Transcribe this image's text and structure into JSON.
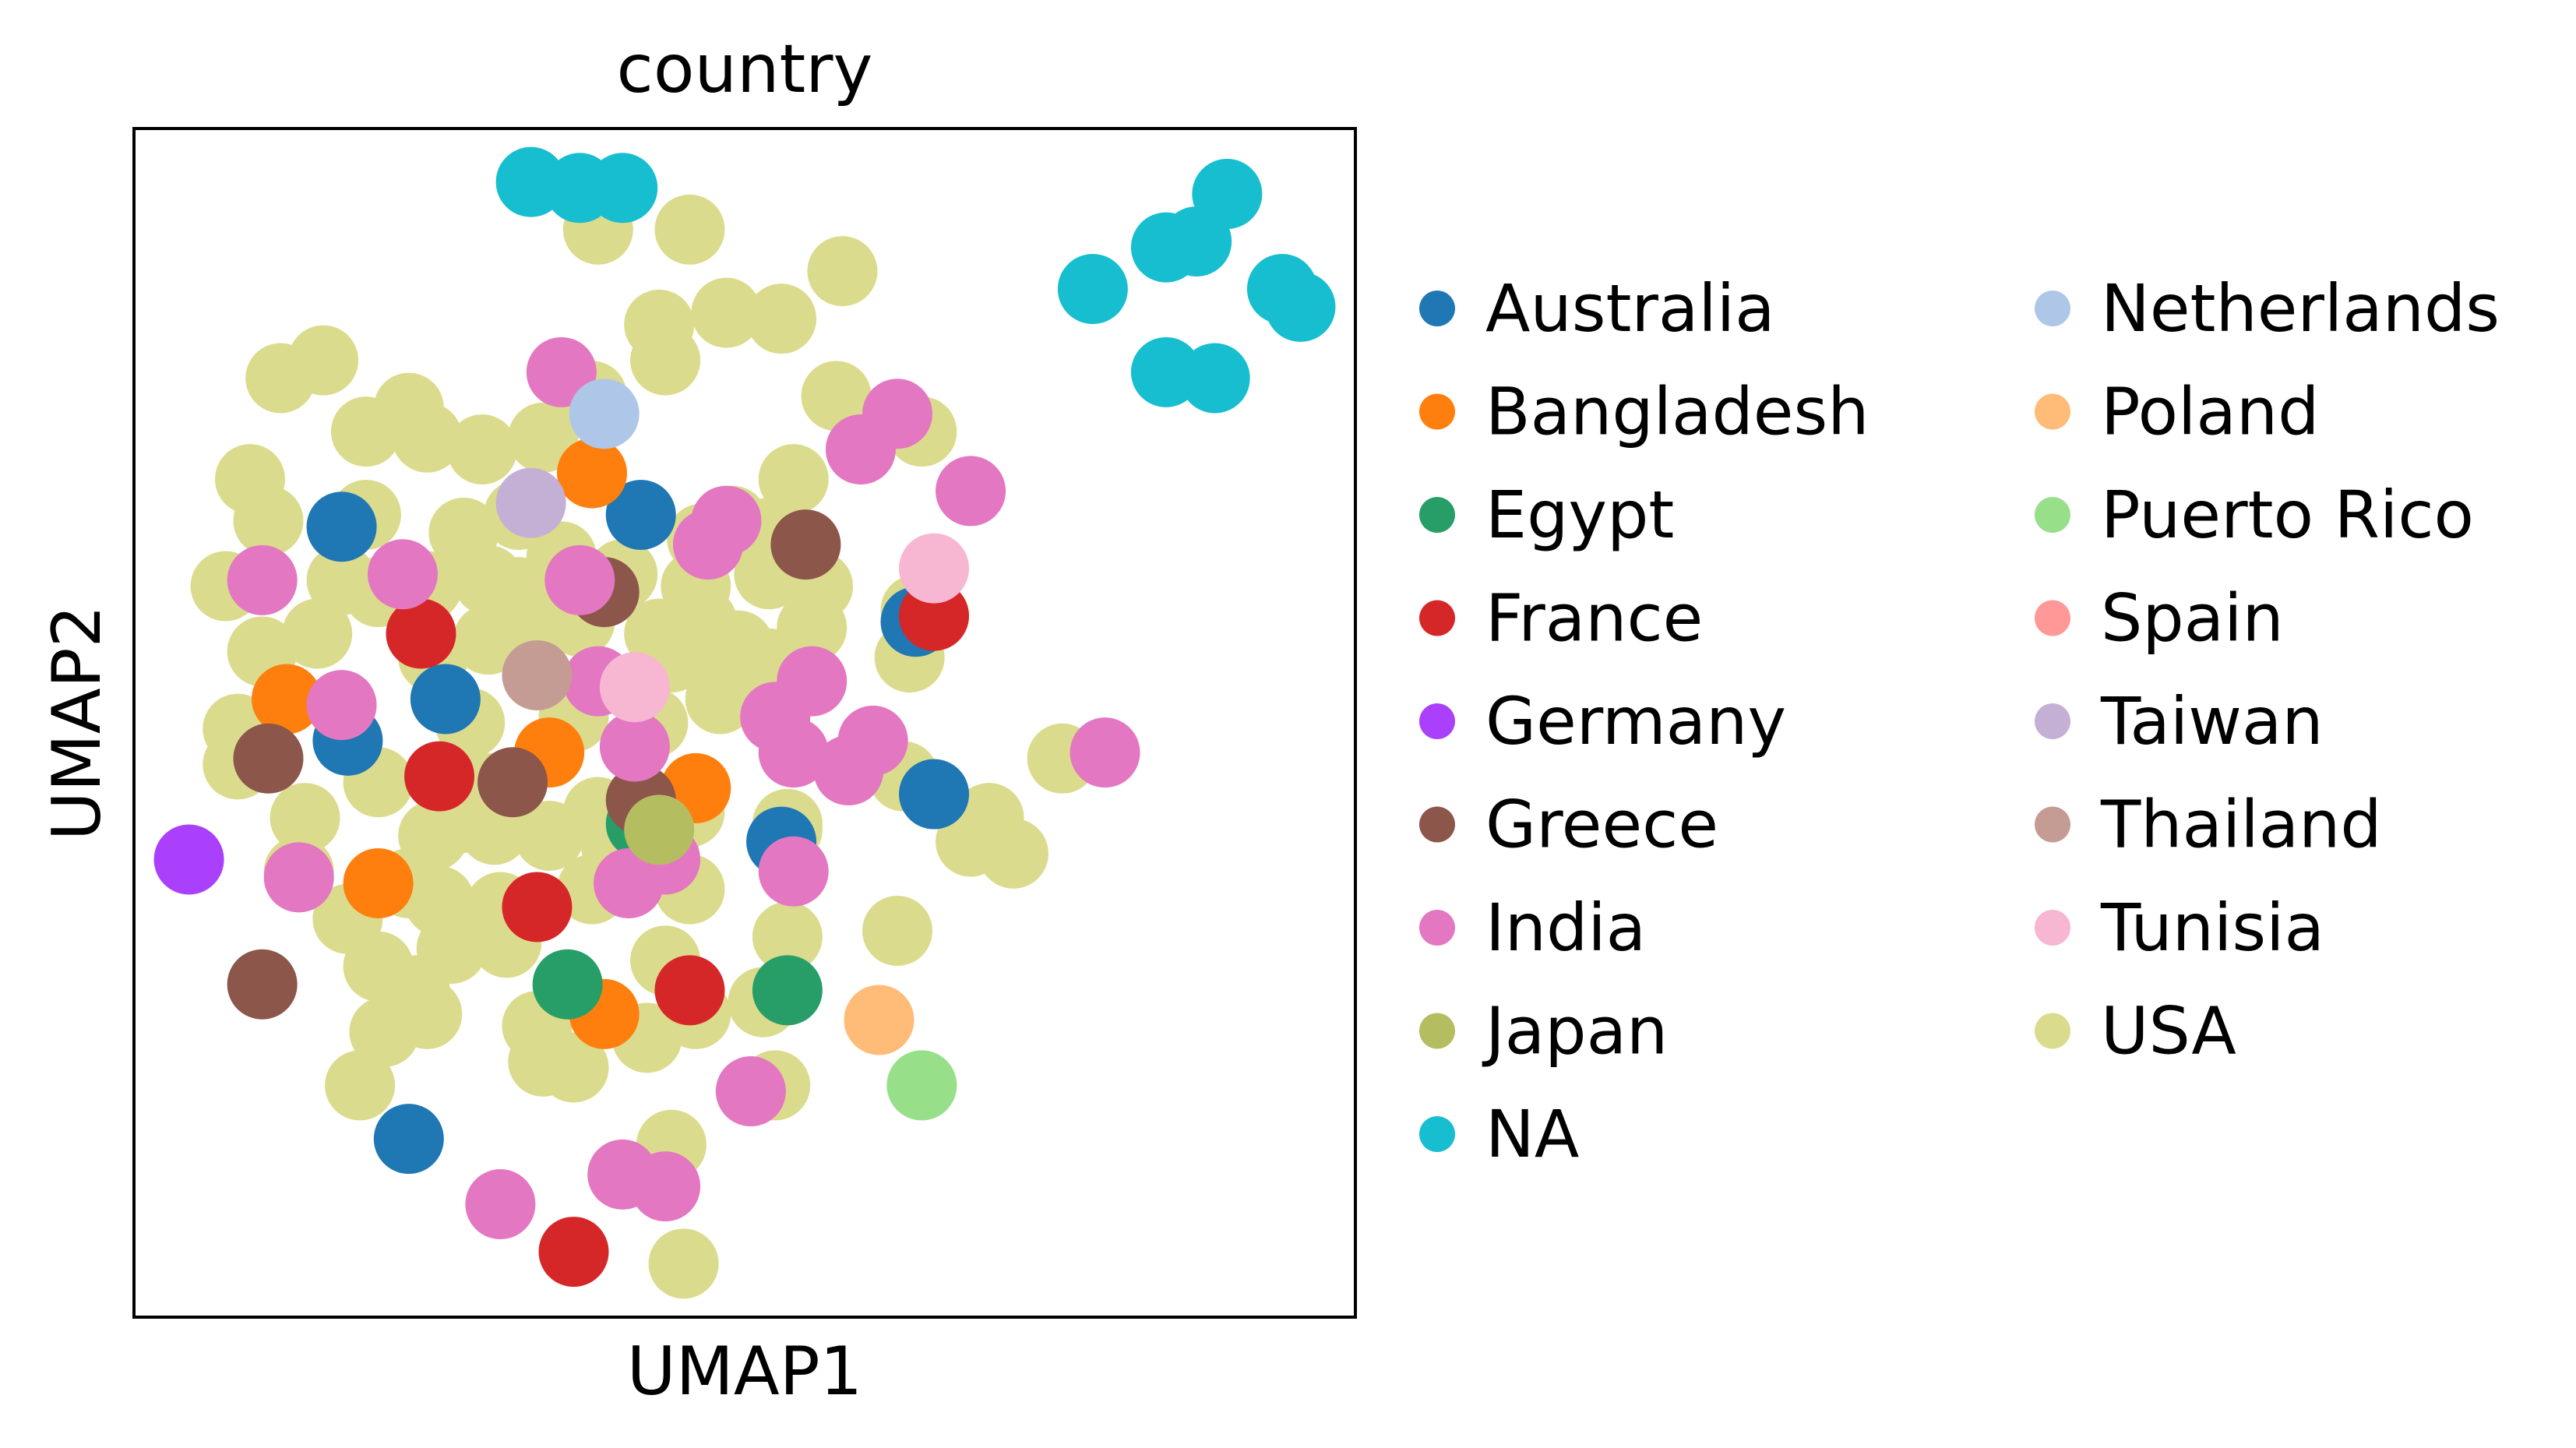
{
  "chart_data": {
    "type": "scatter",
    "title": "country",
    "xlabel": "UMAP1",
    "ylabel": "UMAP2",
    "xlim": [
      0,
      100
    ],
    "ylim": [
      0,
      100
    ],
    "grid": false,
    "ticks": false,
    "legend_placement": "right",
    "series": [
      {
        "name": "Australia",
        "color": "#1f77b4",
        "points": [
          [
            17.0,
            66.5
          ],
          [
            41.5,
            67.5
          ],
          [
            25.5,
            52.0
          ],
          [
            17.5,
            48.5
          ],
          [
            65.5,
            44.0
          ],
          [
            53,
            40.0
          ],
          [
            22.5,
            15.0
          ],
          [
            64.0,
            58.5
          ]
        ]
      },
      {
        "name": "Bangladesh",
        "color": "#ff7f0e",
        "points": [
          [
            37.5,
            71.0
          ],
          [
            12.5,
            52.0
          ],
          [
            34.0,
            47.5
          ],
          [
            46.0,
            44.5
          ],
          [
            20.0,
            36.5
          ],
          [
            38.5,
            25.5
          ]
        ]
      },
      {
        "name": "Egypt",
        "color": "#279e68",
        "points": [
          [
            35.5,
            28.0
          ],
          [
            53.5,
            27.5
          ],
          [
            41.5,
            41.5
          ]
        ]
      },
      {
        "name": "France",
        "color": "#d62728",
        "points": [
          [
            23.5,
            57.5
          ],
          [
            65.5,
            59.0
          ],
          [
            25.0,
            45.5
          ],
          [
            33.0,
            34.5
          ],
          [
            45.5,
            27.5
          ],
          [
            36.0,
            5.5
          ]
        ]
      },
      {
        "name": "Germany",
        "color": "#aa40fc",
        "points": [
          [
            4.5,
            38.5
          ]
        ]
      },
      {
        "name": "Greece",
        "color": "#8c564b",
        "points": [
          [
            55.0,
            65.0
          ],
          [
            38.5,
            61.0
          ],
          [
            11.0,
            47.0
          ],
          [
            31.0,
            45.0
          ],
          [
            41.5,
            43.5
          ],
          [
            10.5,
            28.0
          ]
        ]
      },
      {
        "name": "India",
        "color": "#e377c2",
        "points": [
          [
            35.0,
            79.5
          ],
          [
            62.5,
            76.0
          ],
          [
            59.5,
            73.0
          ],
          [
            68.5,
            69.5
          ],
          [
            48.5,
            67.0
          ],
          [
            47.0,
            65.0
          ],
          [
            10.5,
            62.0
          ],
          [
            22.0,
            62.5
          ],
          [
            36.5,
            62.0
          ],
          [
            17.0,
            51.5
          ],
          [
            38.0,
            53.5
          ],
          [
            55.5,
            53.5
          ],
          [
            52.5,
            50.5
          ],
          [
            60.5,
            48.5
          ],
          [
            58.5,
            46.0
          ],
          [
            54.0,
            47.5
          ],
          [
            79.5,
            47.5
          ],
          [
            41.0,
            48.0
          ],
          [
            43.5,
            38.5
          ],
          [
            40.5,
            36.5
          ],
          [
            13.5,
            37.0
          ],
          [
            54.0,
            37.5
          ],
          [
            50.5,
            19.0
          ],
          [
            40.0,
            12.0
          ],
          [
            30.0,
            9.5
          ],
          [
            43.5,
            11.0
          ]
        ]
      },
      {
        "name": "Japan",
        "color": "#b5bd61",
        "points": [
          [
            43.0,
            41.0
          ]
        ]
      },
      {
        "name": "NA",
        "color": "#17becf",
        "points": [
          [
            32.5,
            95.5
          ],
          [
            36.5,
            95.0
          ],
          [
            40.0,
            95.0
          ],
          [
            89.5,
            94.5
          ],
          [
            87.0,
            90.5
          ],
          [
            84.5,
            90.0
          ],
          [
            78.5,
            86.5
          ],
          [
            94.0,
            86.5
          ],
          [
            95.5,
            85.0
          ],
          [
            84.5,
            79.5
          ],
          [
            88.5,
            79.0
          ]
        ]
      },
      {
        "name": "Netherlands",
        "color": "#aec7e8",
        "points": [
          [
            38.5,
            76.0
          ]
        ]
      },
      {
        "name": "Poland",
        "color": "#ffbb78",
        "points": [
          [
            61.0,
            25.0
          ]
        ]
      },
      {
        "name": "Puerto Rico",
        "color": "#98df8a",
        "points": [
          [
            64.5,
            19.5
          ]
        ]
      },
      {
        "name": "Spain",
        "color": "#ff9896",
        "points": []
      },
      {
        "name": "Taiwan",
        "color": "#c5b0d5",
        "points": [
          [
            32.5,
            68.5
          ]
        ]
      },
      {
        "name": "Thailand",
        "color": "#c49c94",
        "points": [
          [
            33.0,
            54.0
          ]
        ]
      },
      {
        "name": "Tunisia",
        "color": "#f7b6d2",
        "points": [
          [
            65.5,
            63.0
          ],
          [
            41.0,
            53.0
          ]
        ]
      },
      {
        "name": "USA",
        "color": "#dbdb8d",
        "points": [
          [
            38.0,
            91.5
          ],
          [
            45.5,
            91.5
          ],
          [
            58.0,
            88.0
          ],
          [
            43.0,
            83.5
          ],
          [
            48.5,
            84.5
          ],
          [
            53.0,
            84.0
          ],
          [
            12.0,
            79.0
          ],
          [
            15.5,
            80.5
          ],
          [
            43.5,
            80.5
          ],
          [
            22.5,
            76.5
          ],
          [
            19.0,
            74.5
          ],
          [
            24.0,
            74.0
          ],
          [
            28.5,
            73.0
          ],
          [
            33.5,
            74.0
          ],
          [
            37.5,
            77.5
          ],
          [
            57.5,
            77.5
          ],
          [
            64.5,
            74.5
          ],
          [
            9.5,
            70.5
          ],
          [
            11.0,
            67.0
          ],
          [
            19.0,
            67.5
          ],
          [
            27.0,
            66.0
          ],
          [
            31.5,
            67.5
          ],
          [
            46.5,
            65.5
          ],
          [
            54.0,
            70.5
          ],
          [
            49.0,
            67.0
          ],
          [
            52.0,
            66.0
          ],
          [
            7.5,
            61.5
          ],
          [
            17.0,
            62.0
          ],
          [
            20.0,
            61.0
          ],
          [
            24.0,
            61.5
          ],
          [
            29.0,
            62.0
          ],
          [
            31.5,
            61.0
          ],
          [
            35.0,
            64.0
          ],
          [
            40.0,
            62.5
          ],
          [
            46.0,
            61.5
          ],
          [
            52.0,
            62.5
          ],
          [
            56.0,
            61.5
          ],
          [
            15.0,
            57.5
          ],
          [
            24.5,
            55.5
          ],
          [
            29.0,
            57.0
          ],
          [
            32.5,
            58.0
          ],
          [
            36.5,
            58.5
          ],
          [
            43.0,
            57.5
          ],
          [
            46.5,
            58.5
          ],
          [
            49.5,
            56.5
          ],
          [
            55.5,
            58.0
          ],
          [
            64.0,
            59.5
          ],
          [
            10.5,
            56.0
          ],
          [
            8.5,
            49.5
          ],
          [
            27.5,
            50.0
          ],
          [
            36.0,
            50.5
          ],
          [
            42.5,
            50.0
          ],
          [
            48.5,
            54.0
          ],
          [
            52.0,
            55.0
          ],
          [
            44.0,
            55.5
          ],
          [
            63.5,
            55.5
          ],
          [
            48.0,
            52.0
          ],
          [
            8.5,
            46.5
          ],
          [
            20.0,
            45.0
          ],
          [
            29.0,
            44.5
          ],
          [
            38.0,
            42.5
          ],
          [
            45.5,
            42.5
          ],
          [
            53.5,
            41.5
          ],
          [
            63.0,
            45.5
          ],
          [
            76.0,
            47.0
          ],
          [
            70.0,
            42.0
          ],
          [
            68.5,
            40.0
          ],
          [
            72.0,
            39.0
          ],
          [
            14.0,
            42.0
          ],
          [
            13.5,
            37.5
          ],
          [
            24.5,
            40.5
          ],
          [
            27.0,
            42.0
          ],
          [
            29.5,
            41.0
          ],
          [
            34.0,
            40.5
          ],
          [
            39.5,
            39.5
          ],
          [
            43.5,
            40.5
          ],
          [
            53.5,
            41.0
          ],
          [
            17.5,
            33.5
          ],
          [
            22.5,
            36.5
          ],
          [
            25.0,
            35.0
          ],
          [
            28.5,
            33.0
          ],
          [
            30.0,
            34.5
          ],
          [
            37.5,
            36.0
          ],
          [
            45.5,
            36.0
          ],
          [
            53.5,
            32.0
          ],
          [
            62.5,
            32.5
          ],
          [
            20.0,
            29.5
          ],
          [
            23.0,
            27.5
          ],
          [
            26.0,
            31.0
          ],
          [
            30.5,
            31.5
          ],
          [
            43.5,
            30.0
          ],
          [
            51.5,
            26.5
          ],
          [
            20.5,
            24.0
          ],
          [
            24.0,
            25.5
          ],
          [
            33.0,
            24.5
          ],
          [
            42.0,
            23.5
          ],
          [
            46.0,
            25.5
          ],
          [
            18.5,
            19.5
          ],
          [
            33.5,
            21.5
          ],
          [
            36.0,
            21.0
          ],
          [
            52.5,
            19.5
          ],
          [
            44.0,
            14.5
          ],
          [
            45.0,
            4.5
          ]
        ]
      }
    ]
  }
}
